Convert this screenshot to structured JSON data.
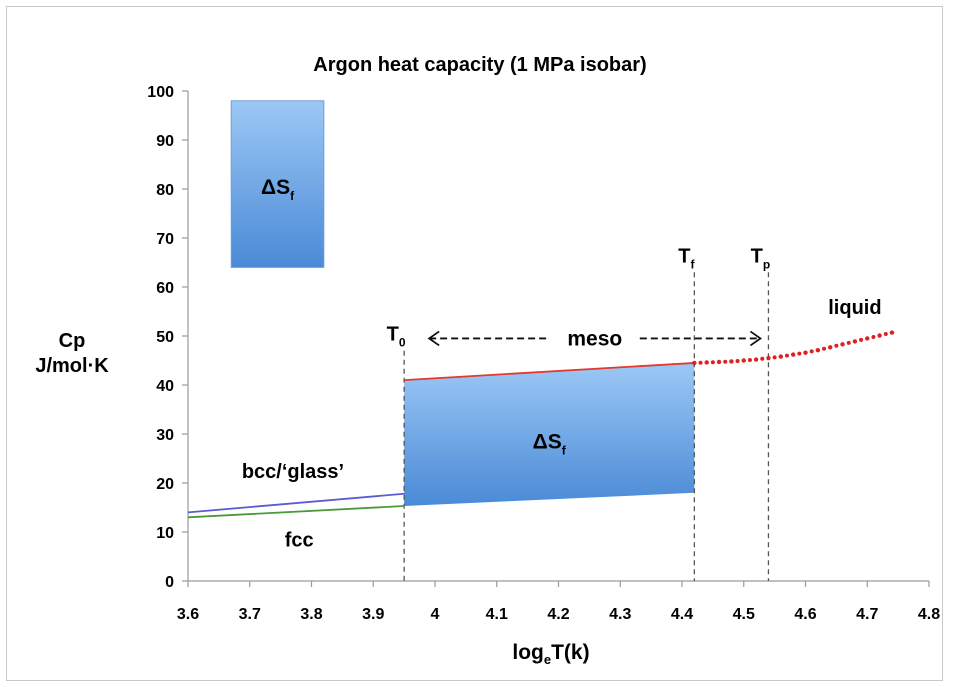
{
  "chart_data": {
    "type": "line",
    "title": "Argon heat capacity (1 MPa isobar)",
    "xlabel": "log",
    "xlabel_sub": "e",
    "xlabel_rest": "T(k)",
    "ylabel_line1": "Cp",
    "ylabel_line2": "J/mol·K",
    "xlim": [
      3.6,
      4.8
    ],
    "ylim": [
      0,
      100
    ],
    "x_ticks": [
      "3.6",
      "3.7",
      "3.8",
      "3.9",
      "4",
      "4.1",
      "4.2",
      "4.3",
      "4.4",
      "4.5",
      "4.6",
      "4.7",
      "4.8"
    ],
    "y_ticks": [
      "0",
      "10",
      "20",
      "30",
      "40",
      "50",
      "60",
      "70",
      "80",
      "90",
      "100"
    ],
    "grid": false,
    "series": [
      {
        "name": "bcc/‘glass’",
        "color": "#5b5bd6",
        "x": [
          3.6,
          3.95
        ],
        "y": [
          14.0,
          17.8
        ]
      },
      {
        "name": "fcc",
        "color": "#4a9a3a",
        "x": [
          3.6,
          3.95
        ],
        "y": [
          13.0,
          15.3
        ]
      },
      {
        "name": "meso",
        "color": "#e23a2e",
        "x": [
          3.95,
          4.42
        ],
        "y": [
          41.0,
          44.5
        ]
      },
      {
        "name": "liquid",
        "color": "#e02020",
        "x": [
          4.42,
          4.44,
          4.46,
          4.48,
          4.5,
          4.52,
          4.54,
          4.56,
          4.58,
          4.6,
          4.62,
          4.64,
          4.66,
          4.68,
          4.7,
          4.72,
          4.74
        ],
        "y": [
          44.5,
          44.6,
          44.7,
          44.8,
          45.0,
          45.2,
          45.5,
          45.8,
          46.2,
          46.6,
          47.1,
          47.7,
          48.3,
          48.9,
          49.5,
          50.1,
          50.7
        ]
      }
    ],
    "shaded_region": {
      "label": "ΔS",
      "sub": "f",
      "x_start": 3.95,
      "x_end": 4.42,
      "y_bottom": [
        15.3,
        18.0
      ],
      "y_top": [
        41.0,
        44.5
      ]
    },
    "legend_box": {
      "label": "ΔS",
      "sub": "f",
      "x_range": [
        3.67,
        3.82
      ],
      "y_range": [
        64,
        98
      ]
    },
    "vertical_lines": [
      {
        "label": "T",
        "sub": "0",
        "x": 3.95,
        "y_top": 47
      },
      {
        "label": "T",
        "sub": "f",
        "x": 4.42,
        "y_top": 63
      },
      {
        "label": "T",
        "sub": "p",
        "x": 4.54,
        "y_top": 63
      }
    ],
    "annotations": [
      {
        "text": "meso",
        "x_from": 3.95,
        "x_to": 4.54,
        "y": 49.5
      },
      {
        "text": "liquid",
        "x": 4.68,
        "y": 54.5
      },
      {
        "text": "bcc/‘glass’",
        "x": 3.77,
        "y": 21
      },
      {
        "text": "fcc",
        "x": 3.78,
        "y": 7
      }
    ],
    "colors": {
      "axis": "#9a9a9a",
      "fill_top": "#9cc8f5",
      "fill_bottom": "#4a8ad6",
      "fill_border": "#6f9fd8"
    }
  }
}
